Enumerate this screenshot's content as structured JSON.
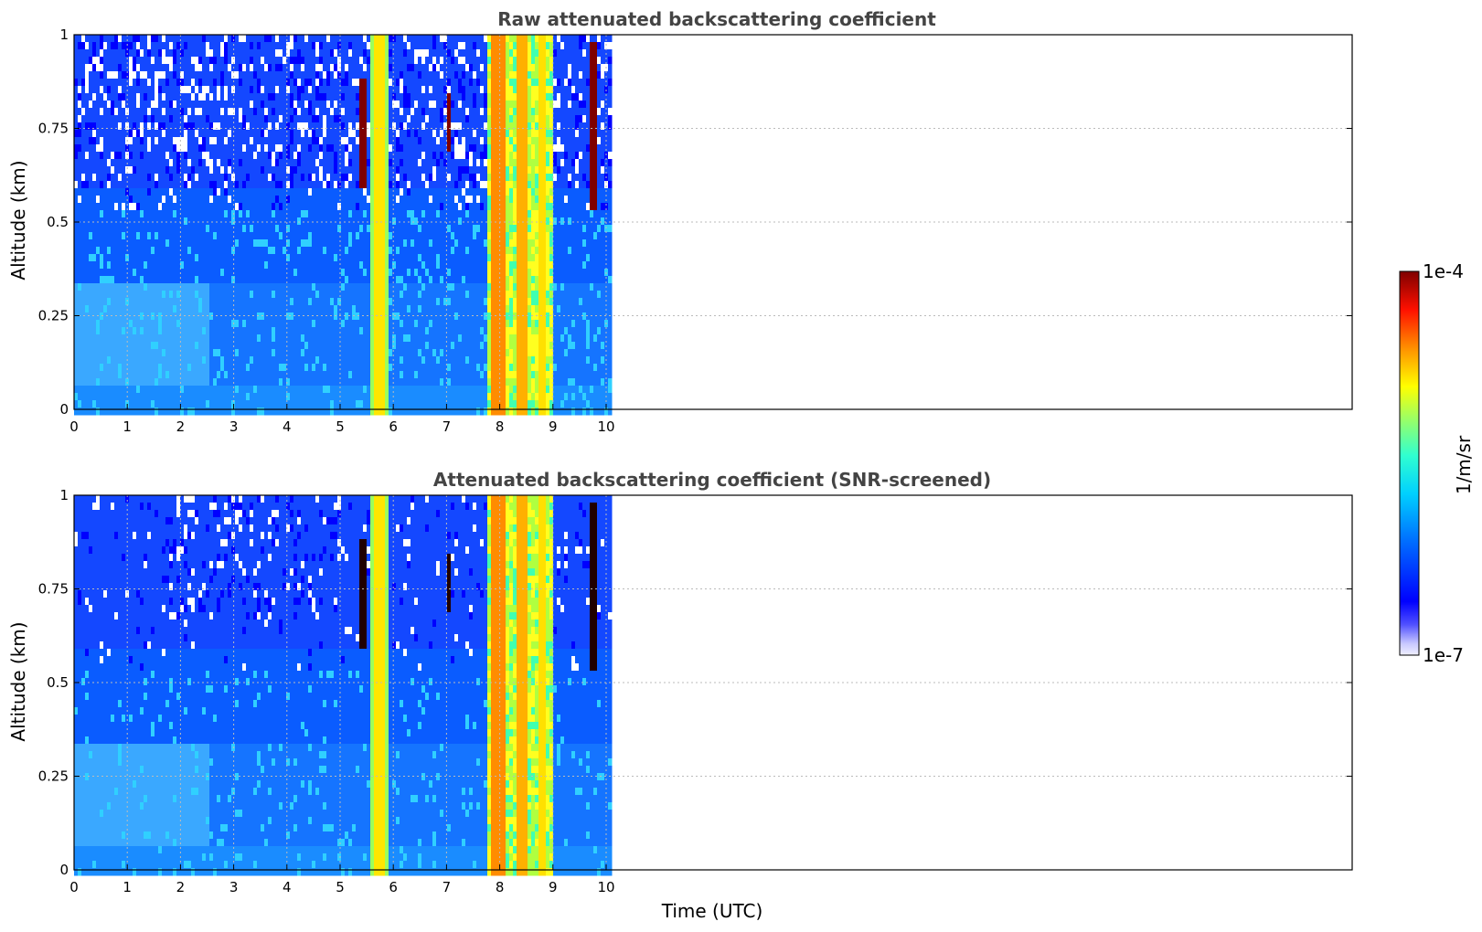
{
  "chart_data": [
    {
      "type": "heatmap",
      "title": "Raw attenuated backscattering coefficient",
      "ylabel": "Altitude (km)",
      "xlabel": "",
      "xlim": [
        0,
        24
      ],
      "ylim": [
        0,
        1
      ],
      "x_ticks": [
        "0",
        "1",
        "2",
        "3",
        "4",
        "5",
        "6",
        "7",
        "8",
        "9",
        "10"
      ],
      "y_ticks": [
        "0",
        "0.25",
        "0.5",
        "0.75",
        "1"
      ],
      "y_tick_values": [
        0,
        0.25,
        0.5,
        0.75,
        1
      ],
      "data_extent_hours": [
        0,
        10.1
      ],
      "grid": true,
      "colorscale": "jet",
      "features": [
        {
          "x_start": 5.55,
          "x_end": 5.85,
          "level": "high"
        },
        {
          "x_start": 7.7,
          "x_end": 9.0,
          "level": "high"
        }
      ]
    },
    {
      "type": "heatmap",
      "title": "Attenuated backscattering coefficient (SNR-screened)",
      "ylabel": "Altitude (km)",
      "xlabel": "Time (UTC)",
      "xlim": [
        0,
        24
      ],
      "ylim": [
        0,
        1
      ],
      "x_ticks": [
        "0",
        "1",
        "2",
        "3",
        "4",
        "5",
        "6",
        "7",
        "8",
        "9",
        "10"
      ],
      "y_ticks": [
        "0",
        "0.25",
        "0.5",
        "0.75",
        "1"
      ],
      "y_tick_values": [
        0,
        0.25,
        0.5,
        0.75,
        1
      ],
      "data_extent_hours": [
        0,
        10.1
      ],
      "grid": true,
      "colorscale": "jet",
      "features": [
        {
          "x_start": 5.55,
          "x_end": 5.85,
          "level": "high"
        },
        {
          "x_start": 7.7,
          "x_end": 9.0,
          "level": "high"
        }
      ]
    }
  ],
  "colorbar": {
    "label": "1/m/sr",
    "max_label": "1e-4",
    "min_label": "1e-7",
    "scale": "log",
    "range": [
      1e-07,
      0.0001
    ]
  }
}
